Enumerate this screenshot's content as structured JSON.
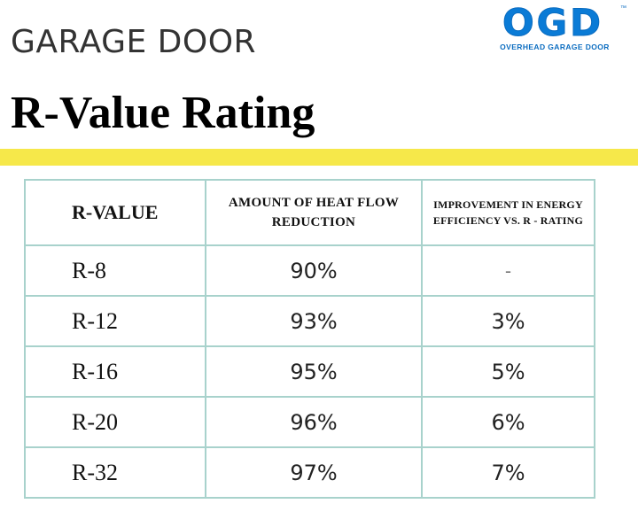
{
  "header": {
    "subtitle": "GARAGE DOOR",
    "title": "R-Value Rating"
  },
  "logo": {
    "letters": "OGD",
    "trademark": "™",
    "tagline": "OVERHEAD GARAGE DOOR",
    "color": "#0a7bd6"
  },
  "accent_color": "#f6e84a",
  "table": {
    "headers": [
      "R-VALUE",
      "AMOUNT OF HEAT FLOW REDUCTION",
      "IMPROVEMENT IN ENERGY EFFICIENCY VS. R - RATING"
    ],
    "rows": [
      {
        "rvalue": "R-8",
        "reduction": "90%",
        "improvement": "-"
      },
      {
        "rvalue": "R-12",
        "reduction": "93%",
        "improvement": "3%"
      },
      {
        "rvalue": "R-16",
        "reduction": "95%",
        "improvement": "5%"
      },
      {
        "rvalue": "R-20",
        "reduction": "96%",
        "improvement": "6%"
      },
      {
        "rvalue": "R-32",
        "reduction": "97%",
        "improvement": "7%"
      }
    ]
  }
}
